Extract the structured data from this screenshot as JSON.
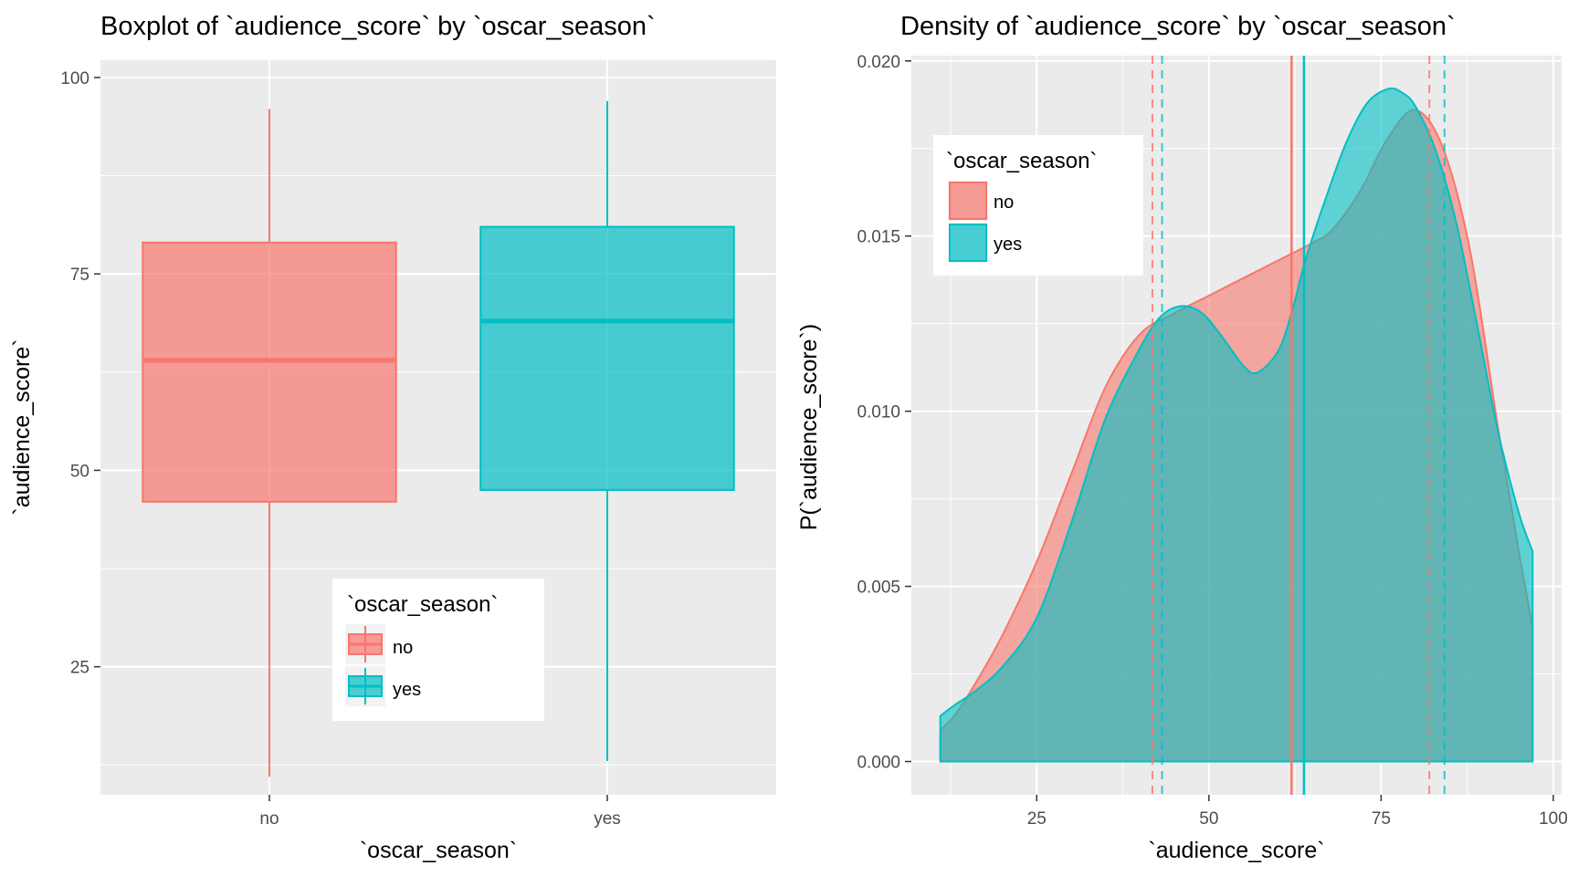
{
  "chart_data": [
    {
      "type": "boxplot",
      "title": "Boxplot of `audience_score` by `oscar_season`",
      "xlabel": "`oscar_season`",
      "ylabel": "`audience_score`",
      "ylim": [
        8.7,
        102.2
      ],
      "yticks": [
        25,
        50,
        75,
        100
      ],
      "categories": [
        "no",
        "yes"
      ],
      "grid": true,
      "legend": {
        "title": "`oscar_season`",
        "placement": "bottom-center",
        "entries": [
          {
            "label": "no",
            "color": "#F8766D"
          },
          {
            "label": "yes",
            "color": "#00BFC4"
          }
        ]
      },
      "series": [
        {
          "category": "no",
          "color": "#F8766D",
          "min": 11,
          "q1": 46,
          "median": 64,
          "q3": 79,
          "max": 96
        },
        {
          "category": "yes",
          "color": "#00BFC4",
          "min": 13,
          "q1": 47.5,
          "median": 69,
          "q3": 81,
          "max": 97
        }
      ]
    },
    {
      "type": "area",
      "title": "Density of `audience_score` by `oscar_season`",
      "xlabel": "`audience_score`",
      "ylabel": "P(`audience_score`)",
      "xlim": [
        6.8,
        101.2
      ],
      "ylim": [
        -0.00095,
        0.02015
      ],
      "xticks": [
        25,
        50,
        75,
        100
      ],
      "yticks": [
        0.0,
        0.005,
        0.01,
        0.015,
        0.02
      ],
      "ytick_labels": [
        "0.000",
        "0.005",
        "0.010",
        "0.015",
        "0.020"
      ],
      "grid": true,
      "legend": {
        "title": "`oscar_season`",
        "placement": "top-left",
        "entries": [
          {
            "label": "no",
            "color": "#F8766D"
          },
          {
            "label": "yes",
            "color": "#00BFC4"
          }
        ]
      },
      "series": [
        {
          "name": "no",
          "color": "#F8766D",
          "median": 62,
          "quartiles": [
            41.8,
            82
          ],
          "x": [
            11,
            13,
            16,
            20,
            25,
            30,
            35,
            40,
            45,
            50,
            55,
            60,
            65,
            68,
            72,
            76,
            80,
            84,
            88,
            92,
            95,
            97
          ],
          "y": [
            0.0009,
            0.0013,
            0.0022,
            0.0036,
            0.0057,
            0.0082,
            0.0107,
            0.0122,
            0.0128,
            0.0133,
            0.0138,
            0.0143,
            0.0148,
            0.0152,
            0.0163,
            0.0178,
            0.0186,
            0.0175,
            0.0145,
            0.0095,
            0.006,
            0.0038
          ]
        },
        {
          "name": "yes",
          "color": "#00BFC4",
          "median": 63.8,
          "quartiles": [
            43.2,
            84.2
          ],
          "x": [
            11,
            13,
            16,
            20,
            25,
            30,
            35,
            40,
            43,
            46,
            49,
            52,
            55,
            57,
            60,
            62,
            64,
            67,
            70,
            73,
            76,
            78,
            80,
            83,
            86,
            89,
            92,
            95,
            97
          ],
          "y": [
            0.0013,
            0.0016,
            0.002,
            0.0027,
            0.0041,
            0.0068,
            0.0098,
            0.0118,
            0.0127,
            0.013,
            0.0128,
            0.0121,
            0.0113,
            0.0111,
            0.0117,
            0.0128,
            0.0143,
            0.0161,
            0.0177,
            0.0188,
            0.0192,
            0.0191,
            0.0187,
            0.0174,
            0.0153,
            0.0124,
            0.0094,
            0.0071,
            0.006
          ]
        }
      ]
    }
  ]
}
